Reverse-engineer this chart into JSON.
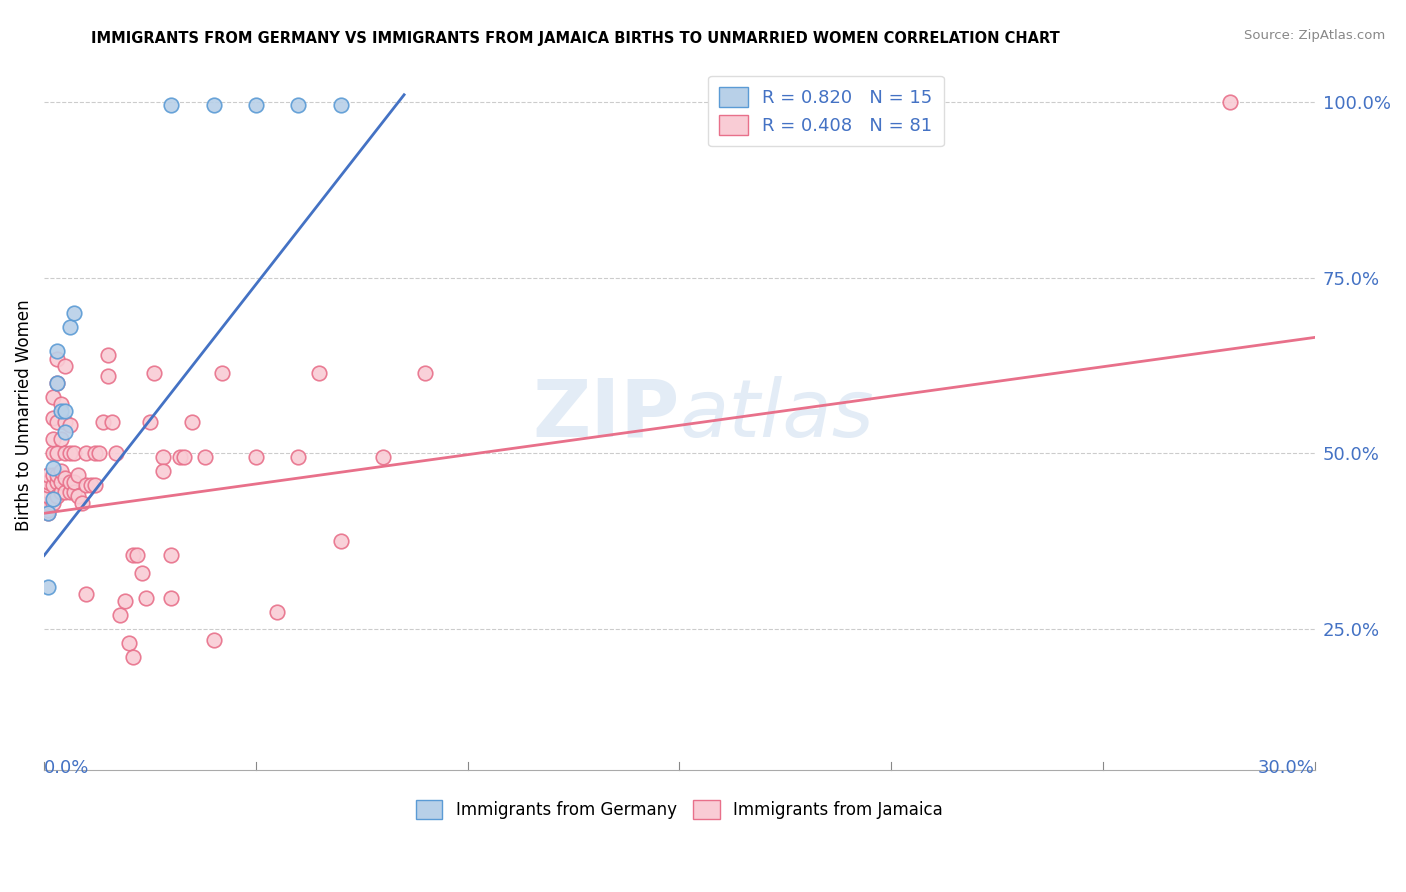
{
  "title": "IMMIGRANTS FROM GERMANY VS IMMIGRANTS FROM JAMAICA BIRTHS TO UNMARRIED WOMEN CORRELATION CHART",
  "source": "Source: ZipAtlas.com",
  "ylabel_label": "Births to Unmarried Women",
  "right_yticks": [
    0.25,
    0.5,
    0.75,
    1.0
  ],
  "right_yticklabels": [
    "25.0%",
    "50.0%",
    "75.0%",
    "100.0%"
  ],
  "watermark": "ZIPatlas",
  "germany_color": "#b8d0e8",
  "germany_edge_color": "#5b9bd5",
  "jamaica_color": "#f9ccd5",
  "jamaica_edge_color": "#e8708a",
  "germany_line_color": "#4472c4",
  "jamaica_line_color": "#e8708a",
  "germany_points": [
    [
      0.001,
      0.415
    ],
    [
      0.002,
      0.435
    ],
    [
      0.002,
      0.48
    ],
    [
      0.003,
      0.6
    ],
    [
      0.003,
      0.645
    ],
    [
      0.004,
      0.56
    ],
    [
      0.005,
      0.53
    ],
    [
      0.005,
      0.56
    ],
    [
      0.006,
      0.68
    ],
    [
      0.007,
      0.7
    ],
    [
      0.001,
      0.31
    ],
    [
      0.03,
      0.995
    ],
    [
      0.04,
      0.995
    ],
    [
      0.05,
      0.995
    ],
    [
      0.06,
      0.995
    ],
    [
      0.07,
      0.995
    ]
  ],
  "jamaica_points": [
    [
      0.001,
      0.415
    ],
    [
      0.001,
      0.42
    ],
    [
      0.001,
      0.43
    ],
    [
      0.001,
      0.44
    ],
    [
      0.001,
      0.455
    ],
    [
      0.001,
      0.46
    ],
    [
      0.001,
      0.47
    ],
    [
      0.002,
      0.43
    ],
    [
      0.002,
      0.455
    ],
    [
      0.002,
      0.47
    ],
    [
      0.002,
      0.5
    ],
    [
      0.002,
      0.52
    ],
    [
      0.002,
      0.55
    ],
    [
      0.002,
      0.58
    ],
    [
      0.003,
      0.44
    ],
    [
      0.003,
      0.46
    ],
    [
      0.003,
      0.47
    ],
    [
      0.003,
      0.5
    ],
    [
      0.003,
      0.545
    ],
    [
      0.003,
      0.6
    ],
    [
      0.003,
      0.635
    ],
    [
      0.004,
      0.445
    ],
    [
      0.004,
      0.46
    ],
    [
      0.004,
      0.475
    ],
    [
      0.004,
      0.52
    ],
    [
      0.004,
      0.57
    ],
    [
      0.005,
      0.445
    ],
    [
      0.005,
      0.465
    ],
    [
      0.005,
      0.5
    ],
    [
      0.005,
      0.545
    ],
    [
      0.005,
      0.625
    ],
    [
      0.006,
      0.445
    ],
    [
      0.006,
      0.46
    ],
    [
      0.006,
      0.5
    ],
    [
      0.006,
      0.54
    ],
    [
      0.007,
      0.445
    ],
    [
      0.007,
      0.46
    ],
    [
      0.007,
      0.5
    ],
    [
      0.008,
      0.44
    ],
    [
      0.008,
      0.47
    ],
    [
      0.009,
      0.43
    ],
    [
      0.01,
      0.455
    ],
    [
      0.01,
      0.5
    ],
    [
      0.011,
      0.455
    ],
    [
      0.012,
      0.455
    ],
    [
      0.012,
      0.5
    ],
    [
      0.013,
      0.5
    ],
    [
      0.014,
      0.545
    ],
    [
      0.015,
      0.61
    ],
    [
      0.015,
      0.64
    ],
    [
      0.016,
      0.545
    ],
    [
      0.017,
      0.5
    ],
    [
      0.01,
      0.3
    ],
    [
      0.018,
      0.27
    ],
    [
      0.019,
      0.29
    ],
    [
      0.02,
      0.23
    ],
    [
      0.021,
      0.21
    ],
    [
      0.021,
      0.355
    ],
    [
      0.022,
      0.355
    ],
    [
      0.023,
      0.33
    ],
    [
      0.024,
      0.295
    ],
    [
      0.025,
      0.545
    ],
    [
      0.026,
      0.615
    ],
    [
      0.028,
      0.495
    ],
    [
      0.028,
      0.475
    ],
    [
      0.03,
      0.295
    ],
    [
      0.03,
      0.355
    ],
    [
      0.032,
      0.495
    ],
    [
      0.033,
      0.495
    ],
    [
      0.035,
      0.545
    ],
    [
      0.038,
      0.495
    ],
    [
      0.04,
      0.235
    ],
    [
      0.042,
      0.615
    ],
    [
      0.05,
      0.495
    ],
    [
      0.055,
      0.275
    ],
    [
      0.06,
      0.495
    ],
    [
      0.065,
      0.615
    ],
    [
      0.07,
      0.375
    ],
    [
      0.08,
      0.495
    ],
    [
      0.09,
      0.615
    ],
    [
      0.28,
      1.0
    ]
  ],
  "ger_trend_x": [
    0.0,
    0.085
  ],
  "ger_trend_y": [
    0.355,
    1.01
  ],
  "jam_trend_x": [
    0.0,
    0.3
  ],
  "jam_trend_y": [
    0.415,
    0.665
  ],
  "xmin": 0.0,
  "xmax": 0.3,
  "ymin": 0.05,
  "ymax": 1.06,
  "grid_yticks": [
    0.25,
    0.5,
    0.75,
    1.0
  ],
  "xtick_positions": [
    0.0,
    0.05,
    0.1,
    0.15,
    0.2,
    0.25,
    0.3
  ]
}
